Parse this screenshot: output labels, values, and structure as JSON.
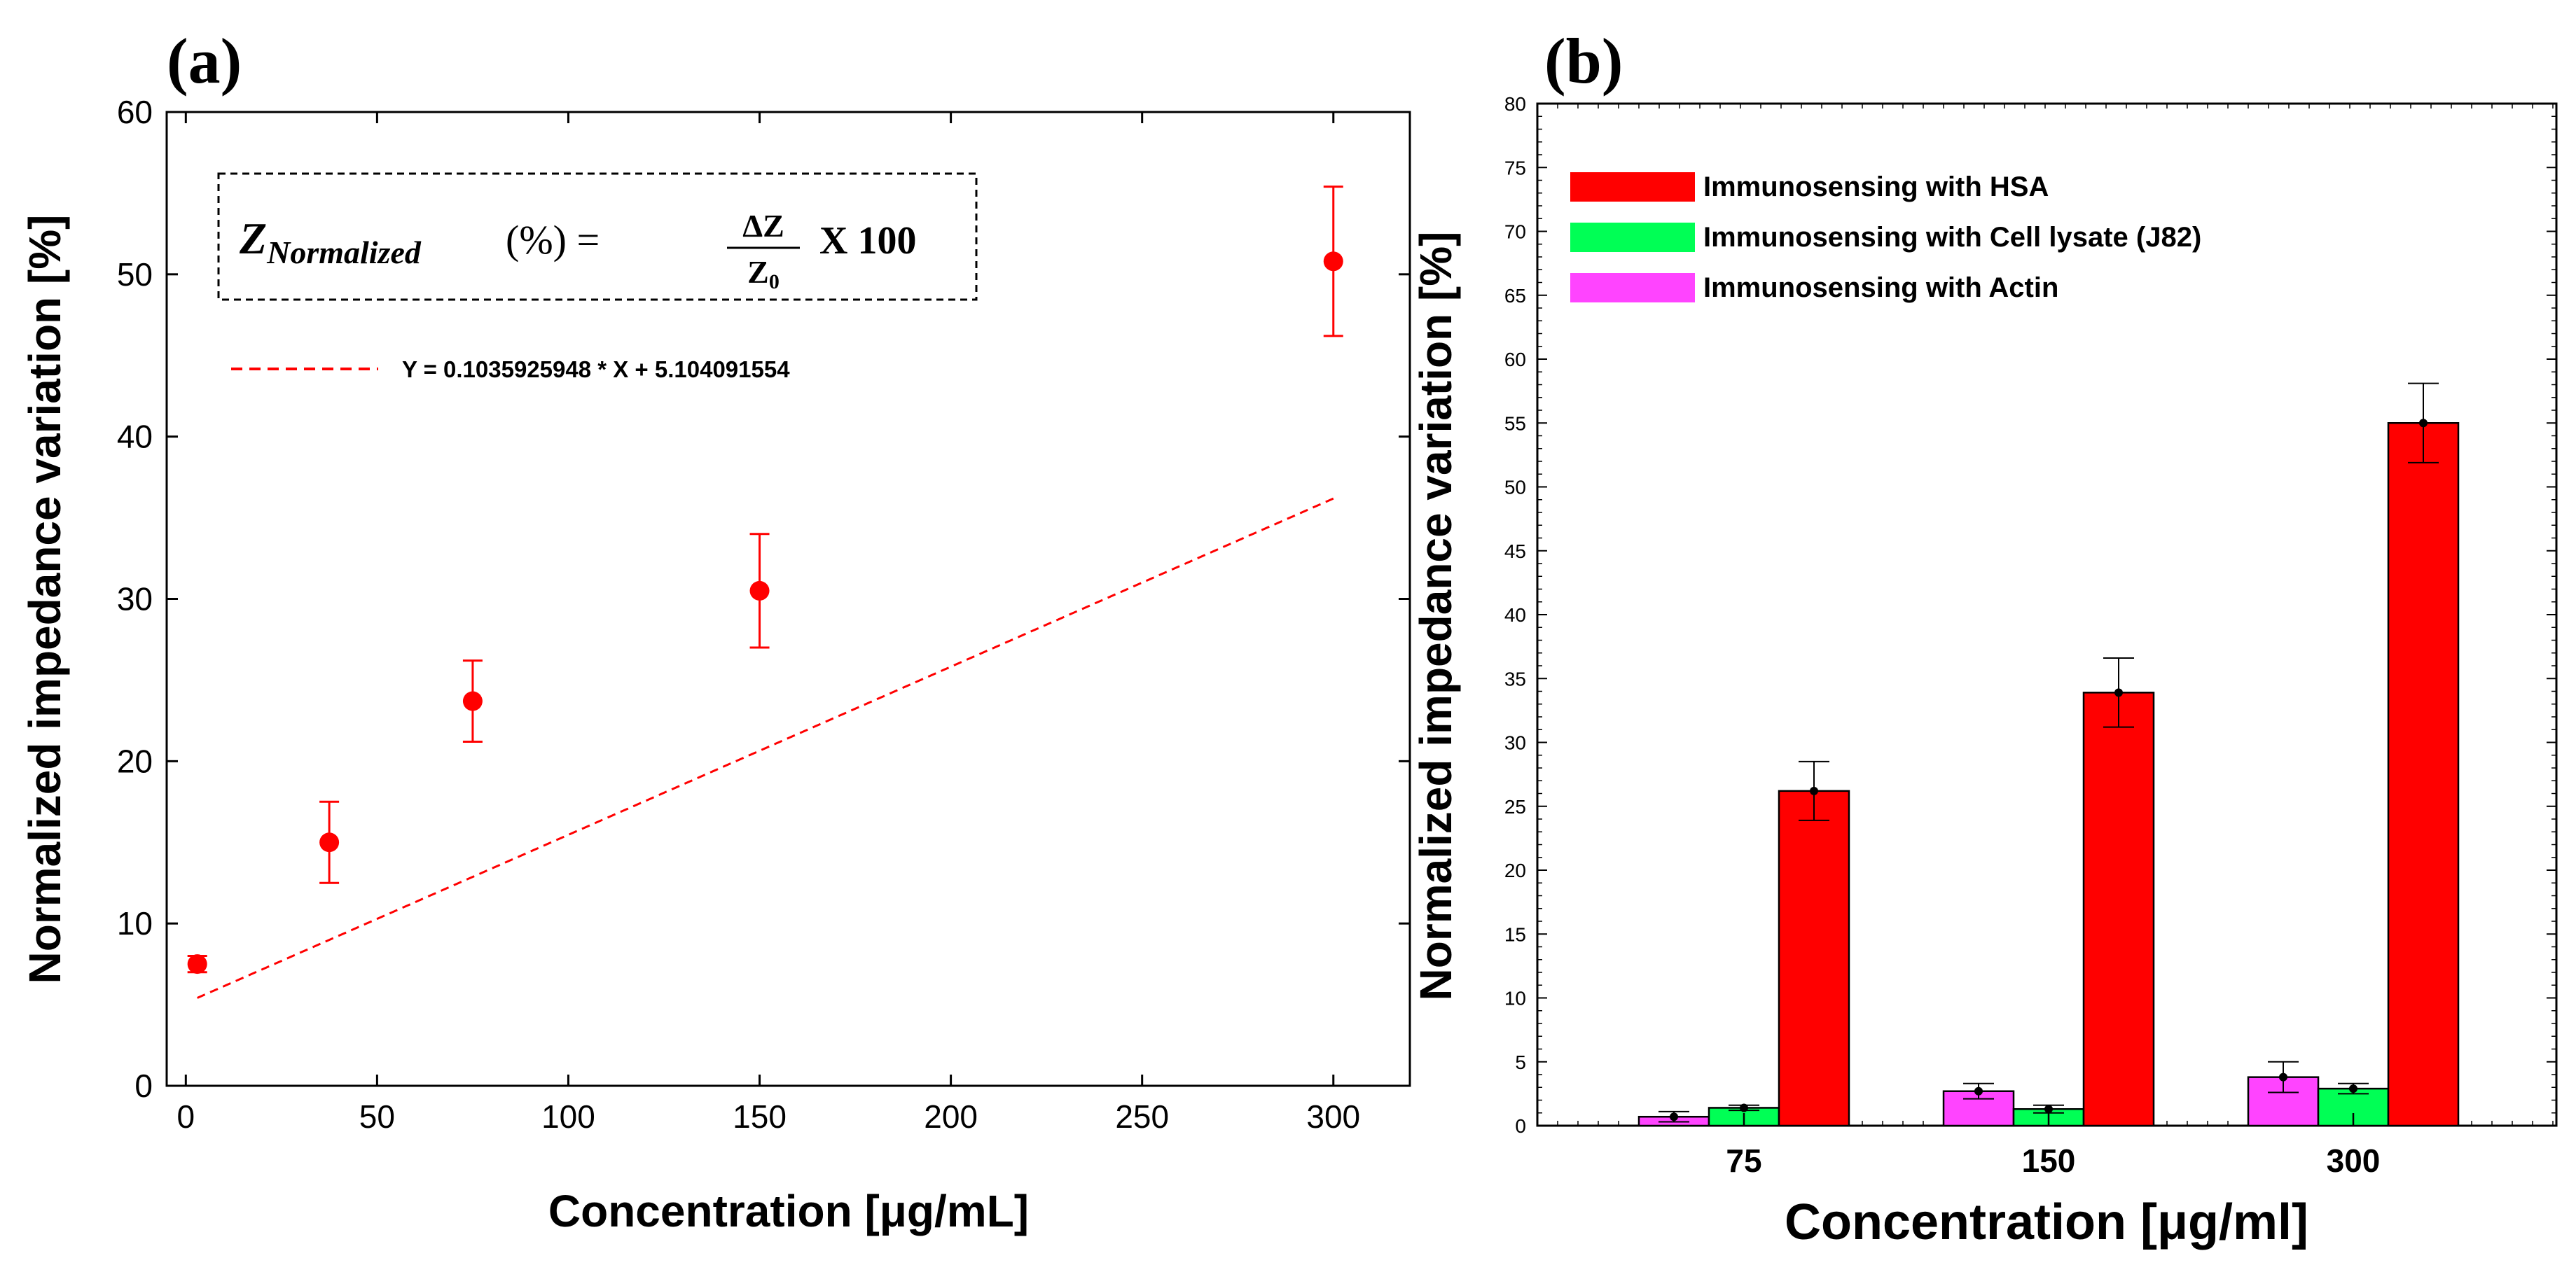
{
  "panel_a": {
    "label": "(a)",
    "formula": {
      "lhs_main": "Z",
      "lhs_sub": "Normalized",
      "lhs_paren": "(%)  =",
      "numerator": "ΔZ",
      "denominator_main": "Z",
      "denominator_sub": "0",
      "multiplier": "X 100"
    },
    "fit_label": "Y = 0.1035925948 * X + 5.104091554"
  },
  "panel_b": {
    "label": "(b)"
  },
  "chart_data": [
    {
      "type": "scatter",
      "title": "",
      "xlabel": "Concentration [μg/mL]",
      "ylabel": "Normalized impedance variation [%]",
      "xlim": [
        -5,
        320
      ],
      "ylim": [
        0,
        60
      ],
      "xticks": [
        0,
        50,
        100,
        150,
        200,
        250,
        300
      ],
      "yticks": [
        0,
        10,
        20,
        30,
        40,
        50,
        60
      ],
      "grid": false,
      "series": [
        {
          "x": [
            3,
            37.5,
            75,
            150,
            300
          ],
          "y": [
            7.5,
            15.0,
            23.7,
            30.5,
            50.8
          ],
          "yerr": [
            0.5,
            2.5,
            2.5,
            3.5,
            4.6
          ],
          "color": "#ff0000"
        }
      ],
      "fit": {
        "slope": 0.1035925948,
        "intercept": 5.104091554,
        "x_range": [
          3,
          300
        ],
        "color": "#ff0000",
        "style": "dashed",
        "legend_placement": "top-left"
      }
    },
    {
      "type": "bar",
      "title": "",
      "xlabel": "Concentration [μg/ml]",
      "ylabel": "Normalized impedance variation [%]",
      "categories": [
        "75",
        "150",
        "300"
      ],
      "ylim": [
        0,
        80
      ],
      "yticks": [
        0,
        5,
        10,
        15,
        20,
        25,
        30,
        35,
        40,
        45,
        50,
        55,
        60,
        65,
        70,
        75,
        80
      ],
      "grid": false,
      "legend_placement": "top-left",
      "series": [
        {
          "name": "Immunosensing with Actin",
          "values": [
            0.7,
            2.7,
            3.8
          ],
          "errors": [
            0.4,
            0.6,
            1.2
          ],
          "color": "#ff44ff"
        },
        {
          "name": "Immunosensing with Cell lysate (J82)",
          "values": [
            1.4,
            1.3,
            2.9
          ],
          "errors": [
            0.2,
            0.3,
            0.4
          ],
          "color": "#00ff55"
        },
        {
          "name": "Immunosensing with HSA",
          "values": [
            26.2,
            33.9,
            55.0
          ],
          "errors": [
            2.3,
            2.7,
            3.1
          ],
          "color": "#ff0000"
        }
      ],
      "legend_order": [
        "Immunosensing with HSA",
        "Immunosensing with Cell lysate (J82)",
        "Immunosensing with Actin"
      ]
    }
  ]
}
